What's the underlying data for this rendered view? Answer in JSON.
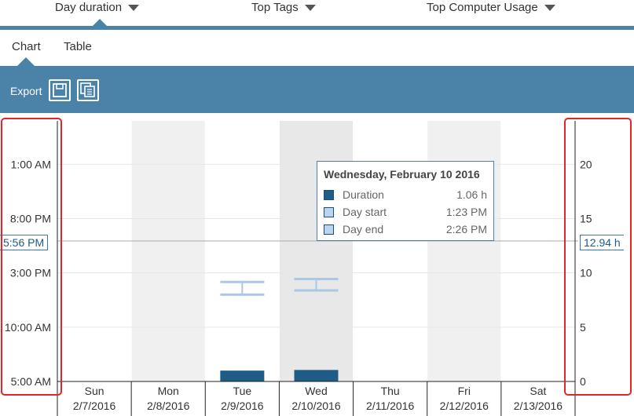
{
  "topnav": {
    "items": [
      {
        "label": "Day duration"
      },
      {
        "label": "Top Tags"
      },
      {
        "label": "Top Computer Usage"
      }
    ]
  },
  "subtabs": [
    {
      "label": "Chart"
    },
    {
      "label": "Table"
    }
  ],
  "toolbar": {
    "export_label": "Export"
  },
  "colors": {
    "accent": "#4a82a8",
    "bar": "#1f5b87",
    "range": "#aac8e6",
    "shade": "#f0f0f0",
    "highlight": "#e8e8e8",
    "annotation": "#e0262b"
  },
  "chart_data": {
    "type": "bar",
    "categories": [
      {
        "day": "Sun",
        "date": "2/7/2016"
      },
      {
        "day": "Mon",
        "date": "2/8/2016"
      },
      {
        "day": "Tue",
        "date": "2/9/2016"
      },
      {
        "day": "Wed",
        "date": "2/10/2016"
      },
      {
        "day": "Thu",
        "date": "2/11/2016"
      },
      {
        "day": "Fri",
        "date": "2/12/2016"
      },
      {
        "day": "Sat",
        "date": "2/13/2016"
      }
    ],
    "duration_hours": [
      0,
      0,
      1.0,
      1.06,
      0,
      0,
      0
    ],
    "day_range": [
      {
        "index": 2,
        "start": "1:00 PM",
        "end": "2:10 PM"
      },
      {
        "index": 3,
        "start": "1:23 PM",
        "end": "2:26 PM"
      }
    ],
    "left_axis": {
      "ticks": [
        "5:00 AM",
        "10:00 AM",
        "3:00 PM",
        "8:00 PM",
        "1:00 AM"
      ],
      "marker": "5:56 PM"
    },
    "right_axis": {
      "ticks": [
        "0",
        "5",
        "10",
        "15",
        "20"
      ],
      "ylim": [
        0,
        24
      ],
      "marker": "12.94 h",
      "marker_value": 12.94
    },
    "grid": true,
    "tooltip": {
      "title": "Wednesday, February 10 2016",
      "rows": [
        {
          "label": "Duration",
          "value": "1.06 h",
          "color": "#1f5b87"
        },
        {
          "label": "Day start",
          "value": "1:23 PM",
          "color": "#bcd4ee"
        },
        {
          "label": "Day end",
          "value": "2:26 PM",
          "color": "#bcd4ee"
        }
      ]
    }
  }
}
